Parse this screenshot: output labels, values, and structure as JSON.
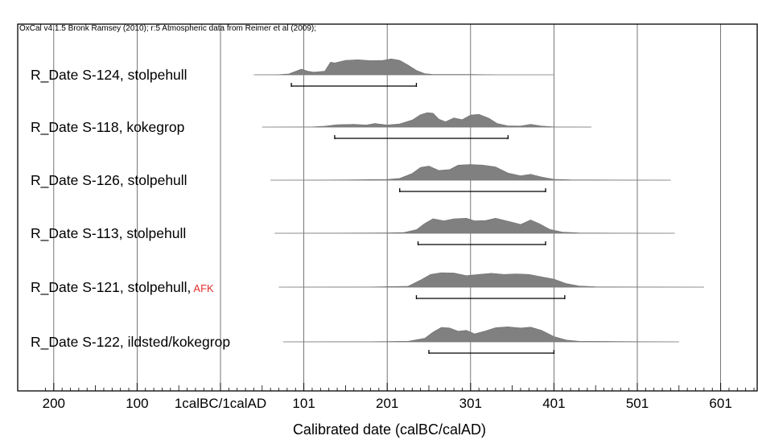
{
  "chart_data": {
    "type": "area",
    "title": "OxCal v4.1.5 Bronk Ramsey (2010); r:5 Atmospheric data from Reimer et al (2009);",
    "xlabel": "Calibrated date (calBC/calAD)",
    "xlim": [
      -210,
      640
    ],
    "x_ticks": [
      {
        "value": -200,
        "label": "200"
      },
      {
        "value": -100,
        "label": "100"
      },
      {
        "value": 0,
        "label": "1calBC/1calAD"
      },
      {
        "value": 100,
        "label": "101"
      },
      {
        "value": 200,
        "label": "201"
      },
      {
        "value": 300,
        "label": "301"
      },
      {
        "value": 400,
        "label": "401"
      },
      {
        "value": 500,
        "label": "501"
      },
      {
        "value": 600,
        "label": "601"
      }
    ],
    "grid": true,
    "colors": {
      "distribution": "#808080",
      "axis": "#000000",
      "flag": "#e0302e"
    },
    "series": [
      {
        "name": "R_Date S-124, stolpehull",
        "flag": "",
        "range": [
          40,
          400
        ],
        "hpd": [
          85,
          235
        ],
        "density": [
          [
            40,
            0
          ],
          [
            70,
            0.01
          ],
          [
            82,
            0.05
          ],
          [
            90,
            0.2
          ],
          [
            97,
            0.32
          ],
          [
            105,
            0.2
          ],
          [
            112,
            0.15
          ],
          [
            125,
            0.2
          ],
          [
            132,
            0.72
          ],
          [
            137,
            0.67
          ],
          [
            150,
            0.82
          ],
          [
            165,
            0.85
          ],
          [
            180,
            0.8
          ],
          [
            195,
            0.82
          ],
          [
            205,
            0.9
          ],
          [
            215,
            0.82
          ],
          [
            225,
            0.55
          ],
          [
            235,
            0.25
          ],
          [
            245,
            0.07
          ],
          [
            255,
            0.02
          ],
          [
            300,
            0.02
          ],
          [
            330,
            0
          ],
          [
            400,
            0
          ]
        ]
      },
      {
        "name": "R_Date S-118, kokegrop",
        "flag": "",
        "range": [
          50,
          445
        ],
        "hpd": [
          137,
          345
        ],
        "density": [
          [
            50,
            0
          ],
          [
            110,
            0.01
          ],
          [
            125,
            0.05
          ],
          [
            140,
            0.13
          ],
          [
            160,
            0.16
          ],
          [
            175,
            0.12
          ],
          [
            185,
            0.2
          ],
          [
            200,
            0.12
          ],
          [
            215,
            0.18
          ],
          [
            230,
            0.4
          ],
          [
            240,
            0.7
          ],
          [
            248,
            0.82
          ],
          [
            255,
            0.78
          ],
          [
            262,
            0.45
          ],
          [
            270,
            0.3
          ],
          [
            280,
            0.52
          ],
          [
            290,
            0.42
          ],
          [
            300,
            0.68
          ],
          [
            310,
            0.72
          ],
          [
            322,
            0.5
          ],
          [
            332,
            0.2
          ],
          [
            345,
            0.07
          ],
          [
            360,
            0.06
          ],
          [
            372,
            0.16
          ],
          [
            385,
            0.06
          ],
          [
            400,
            0.01
          ],
          [
            445,
            0
          ]
        ]
      },
      {
        "name": "R_Date S-126, stolpehull",
        "flag": "",
        "range": [
          60,
          540
        ],
        "hpd": [
          215,
          390
        ],
        "density": [
          [
            60,
            0
          ],
          [
            130,
            0.01
          ],
          [
            160,
            0.02
          ],
          [
            180,
            0.03
          ],
          [
            200,
            0.04
          ],
          [
            215,
            0.1
          ],
          [
            230,
            0.38
          ],
          [
            240,
            0.72
          ],
          [
            250,
            0.8
          ],
          [
            262,
            0.55
          ],
          [
            275,
            0.6
          ],
          [
            285,
            0.85
          ],
          [
            300,
            0.88
          ],
          [
            315,
            0.85
          ],
          [
            330,
            0.75
          ],
          [
            345,
            0.4
          ],
          [
            360,
            0.25
          ],
          [
            372,
            0.33
          ],
          [
            385,
            0.18
          ],
          [
            400,
            0.05
          ],
          [
            420,
            0.02
          ],
          [
            540,
            0
          ]
        ]
      },
      {
        "name": "R_Date S-113, stolpehull",
        "flag": "",
        "range": [
          65,
          545
        ],
        "hpd": [
          237,
          390
        ],
        "density": [
          [
            65,
            0
          ],
          [
            140,
            0.01
          ],
          [
            200,
            0.02
          ],
          [
            220,
            0.04
          ],
          [
            235,
            0.2
          ],
          [
            245,
            0.55
          ],
          [
            255,
            0.82
          ],
          [
            268,
            0.7
          ],
          [
            280,
            0.82
          ],
          [
            295,
            0.85
          ],
          [
            305,
            0.7
          ],
          [
            318,
            0.72
          ],
          [
            330,
            0.85
          ],
          [
            345,
            0.68
          ],
          [
            360,
            0.5
          ],
          [
            372,
            0.75
          ],
          [
            382,
            0.55
          ],
          [
            395,
            0.22
          ],
          [
            410,
            0.07
          ],
          [
            430,
            0.02
          ],
          [
            545,
            0
          ]
        ]
      },
      {
        "name": "R_Date S-121, stolpehull,",
        "flag": "AFK",
        "range": [
          70,
          580
        ],
        "hpd": [
          235,
          413
        ],
        "density": [
          [
            70,
            0
          ],
          [
            180,
            0.01
          ],
          [
            225,
            0.05
          ],
          [
            240,
            0.4
          ],
          [
            252,
            0.72
          ],
          [
            265,
            0.82
          ],
          [
            280,
            0.8
          ],
          [
            295,
            0.65
          ],
          [
            310,
            0.72
          ],
          [
            325,
            0.78
          ],
          [
            340,
            0.72
          ],
          [
            355,
            0.75
          ],
          [
            370,
            0.72
          ],
          [
            385,
            0.58
          ],
          [
            400,
            0.45
          ],
          [
            415,
            0.2
          ],
          [
            430,
            0.07
          ],
          [
            450,
            0.02
          ],
          [
            580,
            0
          ]
        ]
      },
      {
        "name": "R_Date S-122, ildsted/kokegrop",
        "flag": "",
        "range": [
          75,
          550
        ],
        "hpd": [
          250,
          400
        ],
        "density": [
          [
            75,
            0
          ],
          [
            180,
            0.01
          ],
          [
            225,
            0.03
          ],
          [
            245,
            0.2
          ],
          [
            255,
            0.55
          ],
          [
            265,
            0.82
          ],
          [
            275,
            0.78
          ],
          [
            285,
            0.6
          ],
          [
            295,
            0.65
          ],
          [
            305,
            0.45
          ],
          [
            318,
            0.62
          ],
          [
            330,
            0.8
          ],
          [
            345,
            0.85
          ],
          [
            360,
            0.78
          ],
          [
            372,
            0.83
          ],
          [
            385,
            0.65
          ],
          [
            400,
            0.3
          ],
          [
            415,
            0.1
          ],
          [
            430,
            0.03
          ],
          [
            550,
            0
          ]
        ]
      }
    ]
  }
}
